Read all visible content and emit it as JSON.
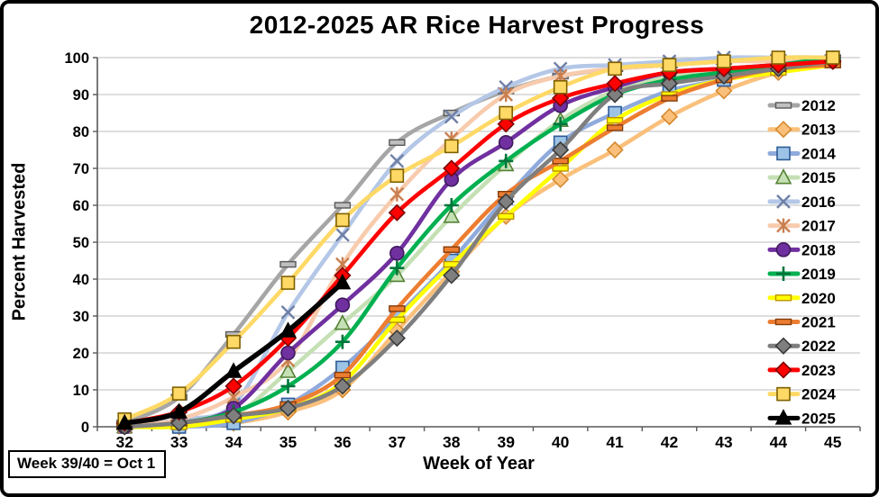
{
  "note": {
    "text": "Week 39/40 = Oct 1"
  },
  "chart_data": {
    "type": "line",
    "title": "2012-2025 AR Rice Harvest Progress",
    "xlabel": "Week of Year",
    "ylabel": "Percent Harvested",
    "x_ticks": [
      32,
      33,
      34,
      35,
      36,
      37,
      38,
      39,
      40,
      41,
      42,
      43,
      44,
      45
    ],
    "y_ticks": [
      0,
      10,
      20,
      30,
      40,
      50,
      60,
      70,
      80,
      90,
      100
    ],
    "ylim": [
      0,
      100
    ],
    "xlim": [
      32,
      45
    ],
    "grid": "horizontal",
    "gridline_color": "#C9C9C9",
    "legend_position": "right-inside",
    "weeks": [
      32,
      33,
      34,
      35,
      36,
      37,
      38,
      39,
      40,
      41,
      42,
      43,
      44,
      45
    ],
    "series": [
      {
        "name": "2012",
        "line_color": "#A6A6A6",
        "marker": "dash",
        "marker_fill": "#BFBFBF",
        "marker_edge": "#595959",
        "values": [
          1,
          8,
          25,
          44,
          60,
          77,
          85,
          91,
          95,
          97,
          98,
          99,
          100,
          100
        ]
      },
      {
        "name": "2013",
        "line_color": "#FAC07B",
        "marker": "diamond",
        "marker_fill": "#FAC07B",
        "marker_edge": "#D78A2E",
        "values": [
          0,
          0,
          1,
          4,
          10,
          26,
          42,
          57,
          67,
          75,
          84,
          91,
          96,
          99
        ]
      },
      {
        "name": "2014",
        "line_color": "#8FAADC",
        "marker": "square",
        "marker_fill": "#9DC3E6",
        "marker_edge": "#2E5B97",
        "values": [
          0,
          0,
          1,
          6,
          16,
          30,
          45,
          62,
          77,
          85,
          91,
          94,
          97,
          100
        ]
      },
      {
        "name": "2015",
        "line_color": "#C5E0B4",
        "marker": "triangle",
        "marker_fill": "#C5E0B4",
        "marker_edge": "#548235",
        "values": [
          0,
          1,
          3,
          15,
          28,
          41,
          57,
          71,
          83,
          91,
          95,
          97,
          98,
          99
        ]
      },
      {
        "name": "2016",
        "line_color": "#B4C7E7",
        "marker": "x",
        "marker_fill": "none",
        "marker_edge": "#6F7FA6",
        "values": [
          0,
          2,
          6,
          31,
          52,
          72,
          84,
          92,
          97,
          98,
          99,
          100,
          100,
          100
        ]
      },
      {
        "name": "2017",
        "line_color": "#F8CBAD",
        "marker": "asterisk",
        "marker_fill": "none",
        "marker_edge": "#C97F50",
        "values": [
          0,
          2,
          8,
          18,
          44,
          63,
          78,
          90,
          95,
          97,
          98,
          99,
          99,
          100
        ]
      },
      {
        "name": "2018",
        "line_color": "#7030A0",
        "marker": "circle",
        "marker_fill": "#7030A0",
        "marker_edge": "#3F1A5C",
        "values": [
          0,
          1,
          5,
          20,
          33,
          47,
          67,
          77,
          87,
          92,
          96,
          97,
          98,
          99
        ]
      },
      {
        "name": "2019",
        "line_color": "#00B050",
        "marker": "plus",
        "marker_fill": "none",
        "marker_edge": "#00753A",
        "values": [
          0,
          1,
          4,
          11,
          23,
          43,
          60,
          72,
          82,
          90,
          94,
          96,
          98,
          100
        ]
      },
      {
        "name": "2020",
        "line_color": "#FFFF00",
        "marker": "dash",
        "marker_fill": "#FFFF00",
        "marker_edge": "#BF9000",
        "values": [
          0,
          0,
          2,
          5,
          12,
          29,
          44,
          57,
          70,
          83,
          90,
          94,
          96,
          98
        ]
      },
      {
        "name": "2021",
        "line_color": "#ED7D31",
        "marker": "dash",
        "marker_fill": "#ED7D31",
        "marker_edge": "#843C0C",
        "values": [
          0,
          1,
          3,
          6,
          14,
          32,
          48,
          63,
          72,
          81,
          89,
          94,
          97,
          98
        ]
      },
      {
        "name": "2022",
        "line_color": "#7F7F7F",
        "marker": "diamond",
        "marker_fill": "#7F7F7F",
        "marker_edge": "#3B3B3B",
        "values": [
          0,
          1,
          3,
          5,
          11,
          24,
          41,
          61,
          75,
          90,
          93,
          95,
          97,
          99
        ]
      },
      {
        "name": "2023",
        "line_color": "#FF0000",
        "marker": "diamond",
        "marker_fill": "#FF0000",
        "marker_edge": "#7B0000",
        "values": [
          1,
          4,
          11,
          24,
          41,
          58,
          70,
          82,
          89,
          93,
          96,
          97,
          98,
          99
        ]
      },
      {
        "name": "2024",
        "line_color": "#FFD966",
        "marker": "square",
        "marker_fill": "#FFD966",
        "marker_edge": "#7F6000",
        "values": [
          2,
          9,
          23,
          39,
          56,
          68,
          76,
          85,
          92,
          97,
          98,
          99,
          100,
          100
        ]
      },
      {
        "name": "2025",
        "line_color": "#000000",
        "marker": "triangle",
        "marker_fill": "#000000",
        "marker_edge": "#000000",
        "values": [
          1,
          4,
          15,
          26,
          39
        ]
      }
    ]
  }
}
